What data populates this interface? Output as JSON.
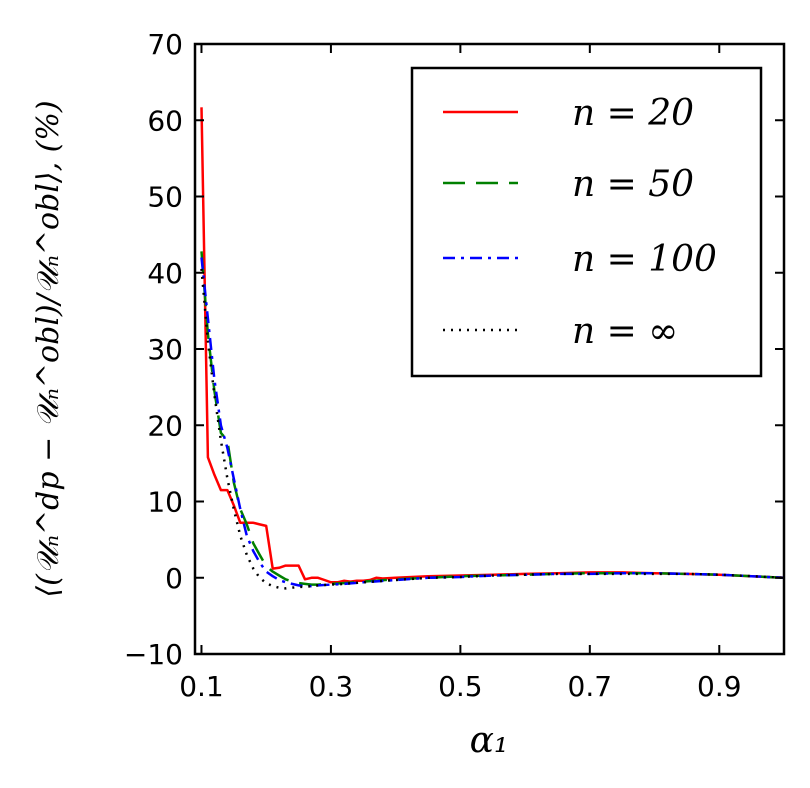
{
  "chart_data": {
    "type": "line",
    "xlabel": "α₁",
    "ylabel": "⟨(𝒰ₙ^dp − 𝒰ₙ^obl)/𝒰ₙ^obl⟩, (%)",
    "xlim": [
      0.09,
      1.0
    ],
    "ylim": [
      -10,
      70
    ],
    "xticks": [
      0.1,
      0.3,
      0.5,
      0.7,
      0.9
    ],
    "xtick_labels": [
      "0.1",
      "0.3",
      "0.5",
      "0.7",
      "0.9"
    ],
    "yticks": [
      -10,
      0,
      10,
      20,
      30,
      40,
      50,
      60,
      70
    ],
    "ytick_labels": [
      "−10",
      "0",
      "10",
      "20",
      "30",
      "40",
      "50",
      "60",
      "70"
    ],
    "legend_position": "top-right",
    "series": [
      {
        "name": "n = 20",
        "color": "#ff0000",
        "dash": "solid",
        "x": [
          0.1,
          0.11,
          0.12,
          0.13,
          0.14,
          0.15,
          0.16,
          0.17,
          0.18,
          0.19,
          0.2,
          0.21,
          0.22,
          0.23,
          0.24,
          0.25,
          0.26,
          0.27,
          0.28,
          0.29,
          0.3,
          0.31,
          0.32,
          0.33,
          0.34,
          0.35,
          0.36,
          0.37,
          0.38,
          0.4,
          0.45,
          0.5,
          0.55,
          0.6,
          0.65,
          0.7,
          0.75,
          0.8,
          0.85,
          0.9,
          0.95,
          1.0
        ],
        "y": [
          61.7,
          15.8,
          13.5,
          11.5,
          11.5,
          9.5,
          7.2,
          7.2,
          7.2,
          7.0,
          6.8,
          1.2,
          1.3,
          1.6,
          1.6,
          1.6,
          -0.2,
          0.0,
          0.0,
          -0.3,
          -0.6,
          -0.6,
          -0.4,
          -0.5,
          -0.4,
          -0.4,
          -0.3,
          0.0,
          -0.1,
          0.0,
          0.2,
          0.3,
          0.4,
          0.5,
          0.6,
          0.7,
          0.7,
          0.6,
          0.5,
          0.4,
          0.2,
          0.0
        ]
      },
      {
        "name": "n = 50",
        "color": "#008000",
        "dash": "dashed",
        "x": [
          0.1,
          0.11,
          0.12,
          0.13,
          0.14,
          0.15,
          0.16,
          0.17,
          0.18,
          0.19,
          0.2,
          0.21,
          0.22,
          0.23,
          0.24,
          0.25,
          0.26,
          0.27,
          0.28,
          0.3,
          0.32,
          0.35,
          0.4,
          0.45,
          0.5,
          0.55,
          0.6,
          0.65,
          0.7,
          0.75,
          0.8,
          0.85,
          0.9,
          0.95,
          1.0
        ],
        "y": [
          42.8,
          32.0,
          24.5,
          19.0,
          18.0,
          12.5,
          9.0,
          7.0,
          4.5,
          3.0,
          1.5,
          0.8,
          0.3,
          -0.2,
          -0.5,
          -0.7,
          -0.8,
          -0.9,
          -0.9,
          -0.8,
          -0.7,
          -0.5,
          -0.2,
          0.0,
          0.2,
          0.3,
          0.4,
          0.5,
          0.6,
          0.6,
          0.6,
          0.5,
          0.4,
          0.2,
          0.0
        ]
      },
      {
        "name": "n = 100",
        "color": "#0000ff",
        "dash": "dashdot",
        "x": [
          0.1,
          0.11,
          0.12,
          0.13,
          0.14,
          0.15,
          0.16,
          0.17,
          0.18,
          0.19,
          0.2,
          0.21,
          0.22,
          0.23,
          0.24,
          0.25,
          0.26,
          0.27,
          0.28,
          0.3,
          0.32,
          0.35,
          0.4,
          0.45,
          0.5,
          0.55,
          0.6,
          0.65,
          0.7,
          0.75,
          0.8,
          0.85,
          0.9,
          0.95,
          1.0
        ],
        "y": [
          42.0,
          34.0,
          26.0,
          20.0,
          17.0,
          13.0,
          9.0,
          5.5,
          3.5,
          2.0,
          0.8,
          0.2,
          -0.3,
          -0.6,
          -0.8,
          -1.0,
          -1.1,
          -1.1,
          -1.0,
          -0.9,
          -0.8,
          -0.6,
          -0.3,
          0.0,
          0.1,
          0.3,
          0.4,
          0.5,
          0.5,
          0.6,
          0.6,
          0.5,
          0.4,
          0.2,
          0.0
        ]
      },
      {
        "name": "n = ∞",
        "color": "#000000",
        "dash": "dotted",
        "x": [
          0.1,
          0.11,
          0.12,
          0.13,
          0.14,
          0.15,
          0.16,
          0.17,
          0.18,
          0.19,
          0.2,
          0.21,
          0.22,
          0.23,
          0.24,
          0.25,
          0.26,
          0.27,
          0.28,
          0.3,
          0.32,
          0.35,
          0.4,
          0.45,
          0.5,
          0.55,
          0.6,
          0.65,
          0.7,
          0.75,
          0.8,
          0.85,
          0.9,
          0.95,
          1.0
        ],
        "y": [
          40.5,
          31.0,
          24.0,
          18.0,
          13.0,
          9.0,
          5.5,
          3.0,
          1.2,
          0.0,
          -0.7,
          -1.1,
          -1.3,
          -1.4,
          -1.3,
          -1.2,
          -1.2,
          -1.1,
          -1.0,
          -0.9,
          -0.8,
          -0.6,
          -0.3,
          0.0,
          0.1,
          0.3,
          0.4,
          0.5,
          0.5,
          0.5,
          0.5,
          0.5,
          0.4,
          0.2,
          0.0
        ]
      }
    ]
  }
}
